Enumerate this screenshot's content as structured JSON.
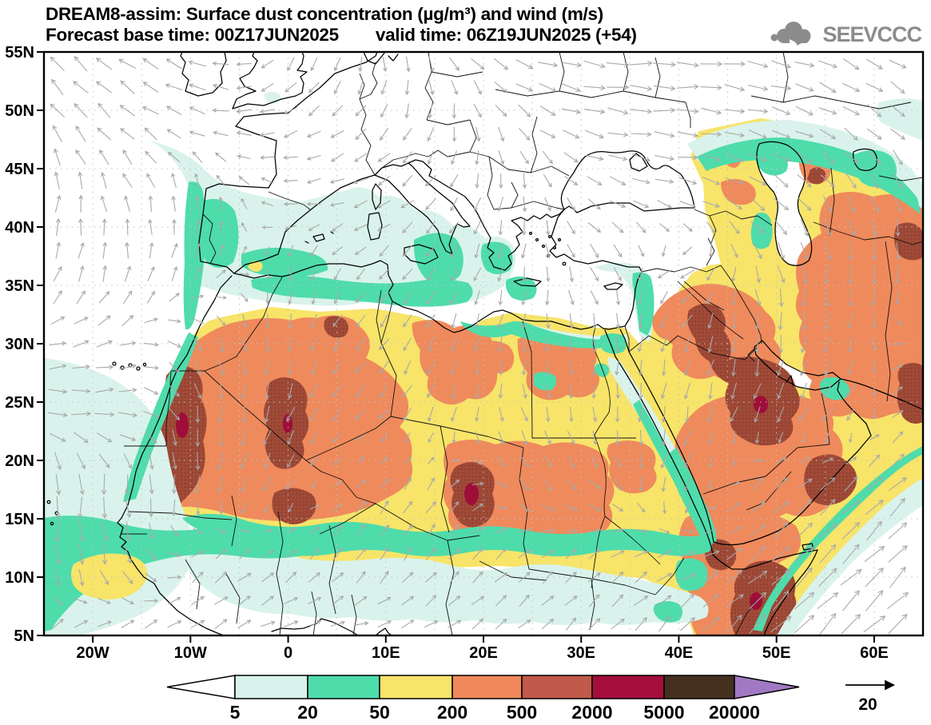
{
  "header": {
    "title_line1": "DREAM8-assim: Surface dust concentration (µg/m³) and wind (m/s)",
    "forecast_label": "Forecast base time: 00Z17JUN2025",
    "valid_label": "valid time: 06Z19JUN2025 (+54)",
    "logo_text": "SEEVCCC"
  },
  "axes": {
    "lat_labels": [
      "55N",
      "50N",
      "45N",
      "40N",
      "35N",
      "30N",
      "25N",
      "20N",
      "15N",
      "10N",
      "5N"
    ],
    "lat_values": [
      55,
      50,
      45,
      40,
      35,
      30,
      25,
      20,
      15,
      10,
      5
    ],
    "lon_labels": [
      "20W",
      "10W",
      "0",
      "10E",
      "20E",
      "30E",
      "40E",
      "50E",
      "60E"
    ],
    "lon_values": [
      -20,
      -10,
      0,
      10,
      20,
      30,
      40,
      50,
      60
    ],
    "grid_step_deg": 5
  },
  "legend": {
    "values": [
      "5",
      "20",
      "50",
      "200",
      "500",
      "2000",
      "5000",
      "20000"
    ],
    "segment_colors": [
      "#d9f3ec",
      "#4edcab",
      "#f7e469",
      "#f0885c",
      "#c05a4a",
      "#a40d3c",
      "#453020"
    ],
    "under_color": "#ffffff",
    "over_color": "#a179c2",
    "outline_color": "#000000"
  },
  "wind": {
    "reference_label": "20",
    "color": "#a9a9a9",
    "ref_color": "#000000",
    "grid": {
      "cols": 12,
      "rows": 9,
      "angles": [
        [
          225,
          215,
          200,
          120,
          90,
          60,
          20,
          5,
          0,
          10,
          25,
          35
        ],
        [
          235,
          220,
          195,
          160,
          135,
          100,
          45,
          10,
          5,
          15,
          30,
          45
        ],
        [
          280,
          250,
          270,
          190,
          160,
          130,
          90,
          30,
          15,
          35,
          60,
          70
        ],
        [
          290,
          280,
          300,
          90,
          135,
          120,
          100,
          55,
          160,
          70,
          90,
          100
        ],
        [
          350,
          340,
          60,
          100,
          130,
          110,
          95,
          85,
          110,
          95,
          110,
          320
        ],
        [
          10,
          0,
          90,
          110,
          140,
          110,
          70,
          90,
          100,
          115,
          130,
          315
        ],
        [
          90,
          90,
          100,
          130,
          315,
          300,
          50,
          40,
          120,
          315,
          320,
          315
        ],
        [
          90,
          70,
          315,
          320,
          300,
          310,
          315,
          315,
          340,
          320,
          315,
          315
        ],
        [
          315,
          320,
          330,
          340,
          350,
          330,
          320,
          315,
          310,
          315,
          315,
          315
        ]
      ],
      "mags": [
        [
          0.8,
          0.8,
          0.7,
          0.5,
          0.5,
          0.6,
          0.8,
          1.0,
          1.0,
          0.9,
          0.8,
          0.7
        ],
        [
          0.8,
          0.7,
          0.6,
          0.5,
          0.5,
          0.5,
          0.6,
          0.9,
          0.9,
          0.8,
          0.7,
          0.7
        ],
        [
          0.7,
          0.6,
          0.5,
          0.4,
          0.5,
          0.5,
          0.5,
          0.6,
          0.7,
          0.8,
          0.7,
          0.6
        ],
        [
          0.6,
          0.6,
          0.5,
          0.4,
          0.4,
          0.5,
          0.5,
          0.6,
          0.6,
          0.7,
          0.8,
          0.7
        ],
        [
          0.6,
          0.6,
          0.6,
          0.5,
          0.5,
          0.5,
          0.5,
          0.5,
          0.6,
          0.7,
          0.7,
          0.6
        ],
        [
          0.8,
          0.8,
          0.7,
          0.6,
          0.5,
          0.5,
          0.5,
          0.5,
          0.6,
          0.6,
          0.6,
          0.8
        ],
        [
          1.0,
          0.9,
          0.7,
          0.5,
          0.5,
          0.5,
          0.5,
          0.5,
          0.6,
          0.7,
          0.9,
          1.0
        ],
        [
          0.9,
          0.8,
          0.6,
          0.5,
          0.5,
          0.5,
          0.5,
          0.5,
          0.6,
          1.0,
          1.2,
          1.2
        ],
        [
          0.7,
          0.6,
          0.5,
          0.5,
          0.5,
          0.5,
          0.5,
          0.6,
          0.8,
          1.2,
          1.3,
          1.3
        ]
      ]
    }
  },
  "map": {
    "grid_color": "#c3c3c3",
    "coast_color": "#000000",
    "frame_color": "#000000",
    "dust_colors": {
      "cyan": "#d9f3ec",
      "teal": "#4edcab",
      "yellow": "#f7e469",
      "orange": "#ef8a5c",
      "brick": "#a04a38",
      "crimson": "#9e0e38",
      "white": "#ffffff"
    }
  }
}
